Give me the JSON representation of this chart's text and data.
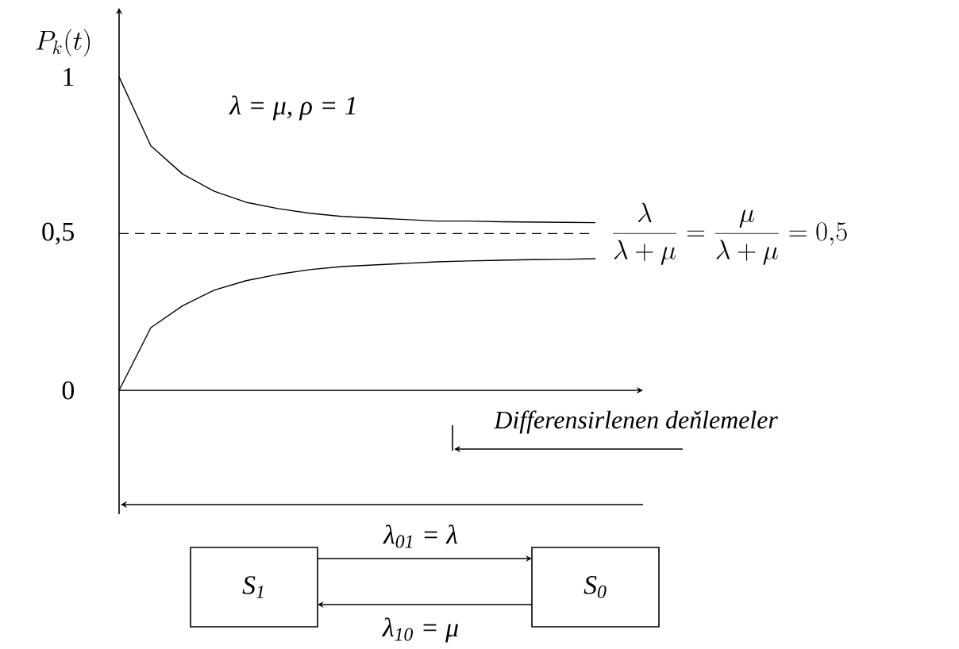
{
  "chart_data": {
    "type": "line",
    "ylabel": "P_k(t)",
    "categories": [
      null,
      null,
      null,
      null,
      null,
      null,
      null,
      null,
      null,
      null,
      null,
      null,
      null,
      null,
      null,
      null
    ],
    "series": [
      {
        "color": "#000000",
        "values": [
          1,
          0.78,
          0.69,
          0.635,
          0.6,
          0.58,
          0.565,
          0.555,
          0.55,
          0.545,
          0.54,
          0.54,
          0.538,
          0.537,
          0.536,
          0.535
        ]
      },
      {
        "color": "#000000",
        "values": [
          0,
          0.2,
          0.27,
          0.32,
          0.35,
          0.37,
          0.385,
          0.395,
          0.4,
          0.405,
          0.41,
          0.413,
          0.415,
          0.417,
          0.418,
          0.42
        ]
      }
    ],
    "ylim": [
      0,
      1.22
    ],
    "yticks": [
      0,
      {
        "value": 0.5,
        "label": "0,5"
      },
      1
    ],
    "tick_labels": "y",
    "ref_lines": [
      {
        "axis": "y",
        "value": 0.5,
        "label": "\\frac{\\lambda}{\\lambda+\\mu}=\\frac{\\mu}{\\lambda+\\mu}=0{,}5",
        "line_style": "dashed",
        "color": "#000000"
      }
    ],
    "annotations": [
      "λ = μ, ρ = 1",
      "Differensirlenen deňlemeler",
      "λ$_{01}$ = λ",
      "λ$_{10}$ = μ",
      "S$_{1}$",
      "S$_{0}$"
    ]
  }
}
